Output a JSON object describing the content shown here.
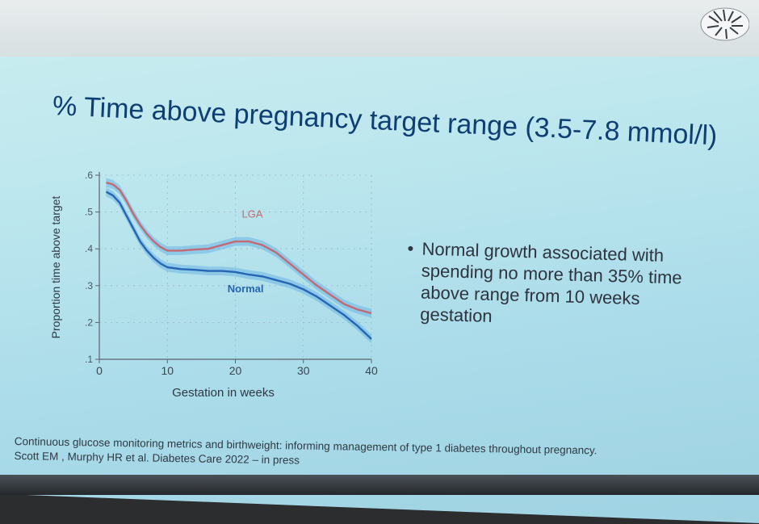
{
  "slide": {
    "title": "% Time above pregnancy target range (3.5-7.8 mmol/l)",
    "bullet": "Normal growth associated with spending no more than 35% time above range from 10 weeks gestation",
    "citation_line1": "Continuous glucose monitoring metrics and birthweight: informing management of type 1 diabetes throughout pregnancy.",
    "citation_line2": "Scott EM , Murphy HR et al. Diabetes Care 2022 – in press"
  },
  "colors": {
    "lga": "#c26a73",
    "normal": "#2565b3",
    "band": "#6db4e3",
    "title": "#0f3e73"
  },
  "chart_data": {
    "type": "line",
    "xlabel": "Gestation in weeks",
    "ylabel": "Proportion time above target",
    "xlim": [
      0,
      40
    ],
    "ylim": [
      0.1,
      0.6
    ],
    "xticks": [
      0,
      10,
      20,
      30,
      40
    ],
    "yticks": [
      0.1,
      0.2,
      0.3,
      0.4,
      0.5,
      0.6
    ],
    "xtick_labels": [
      "0",
      "10",
      "20",
      "30",
      "40"
    ],
    "ytick_labels": [
      ".1",
      ".2",
      ".3",
      ".4",
      ".5",
      ".6"
    ],
    "x": [
      1,
      2,
      3,
      4,
      5,
      6,
      7,
      8,
      9,
      10,
      12,
      14,
      16,
      18,
      20,
      22,
      24,
      26,
      28,
      30,
      32,
      34,
      36,
      38,
      40
    ],
    "series": [
      {
        "name": "LGA",
        "values": [
          0.58,
          0.575,
          0.56,
          0.53,
          0.495,
          0.465,
          0.44,
          0.42,
          0.405,
          0.395,
          0.395,
          0.398,
          0.4,
          0.41,
          0.42,
          0.42,
          0.41,
          0.39,
          0.36,
          0.33,
          0.3,
          0.275,
          0.25,
          0.235,
          0.225
        ]
      },
      {
        "name": "Normal",
        "values": [
          0.555,
          0.545,
          0.525,
          0.49,
          0.455,
          0.42,
          0.395,
          0.375,
          0.36,
          0.35,
          0.345,
          0.343,
          0.34,
          0.34,
          0.337,
          0.33,
          0.325,
          0.315,
          0.305,
          0.29,
          0.27,
          0.245,
          0.22,
          0.19,
          0.155
        ]
      }
    ]
  }
}
